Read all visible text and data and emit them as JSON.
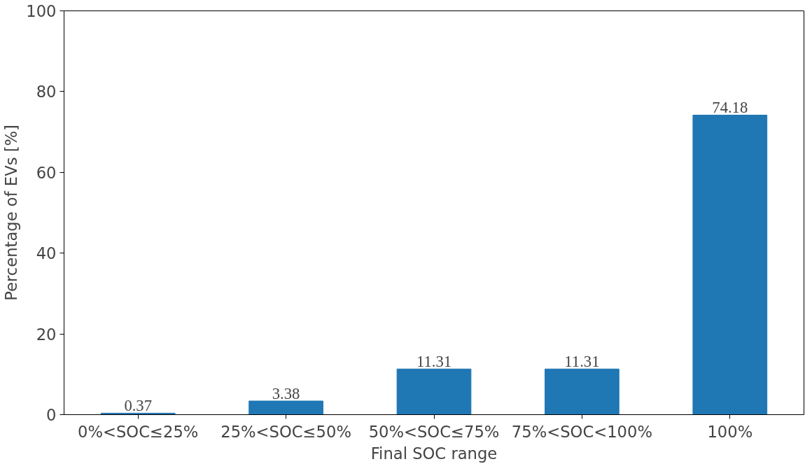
{
  "chart_data": {
    "type": "bar",
    "xlabel": "Final SOC range",
    "ylabel": "Percentage of EVs [%]",
    "categories": [
      "0%<SOC≤25%",
      "25%<SOC≤50%",
      "50%<SOC≤75%",
      "75%<SOC<100%",
      "100%"
    ],
    "values": [
      0.37,
      3.38,
      11.31,
      11.31,
      74.18
    ],
    "color": "#1f77b4",
    "ylim": [
      0,
      100
    ],
    "yticks": [
      0,
      20,
      40,
      60,
      80,
      100
    ],
    "grid": false,
    "data_labels": true
  }
}
